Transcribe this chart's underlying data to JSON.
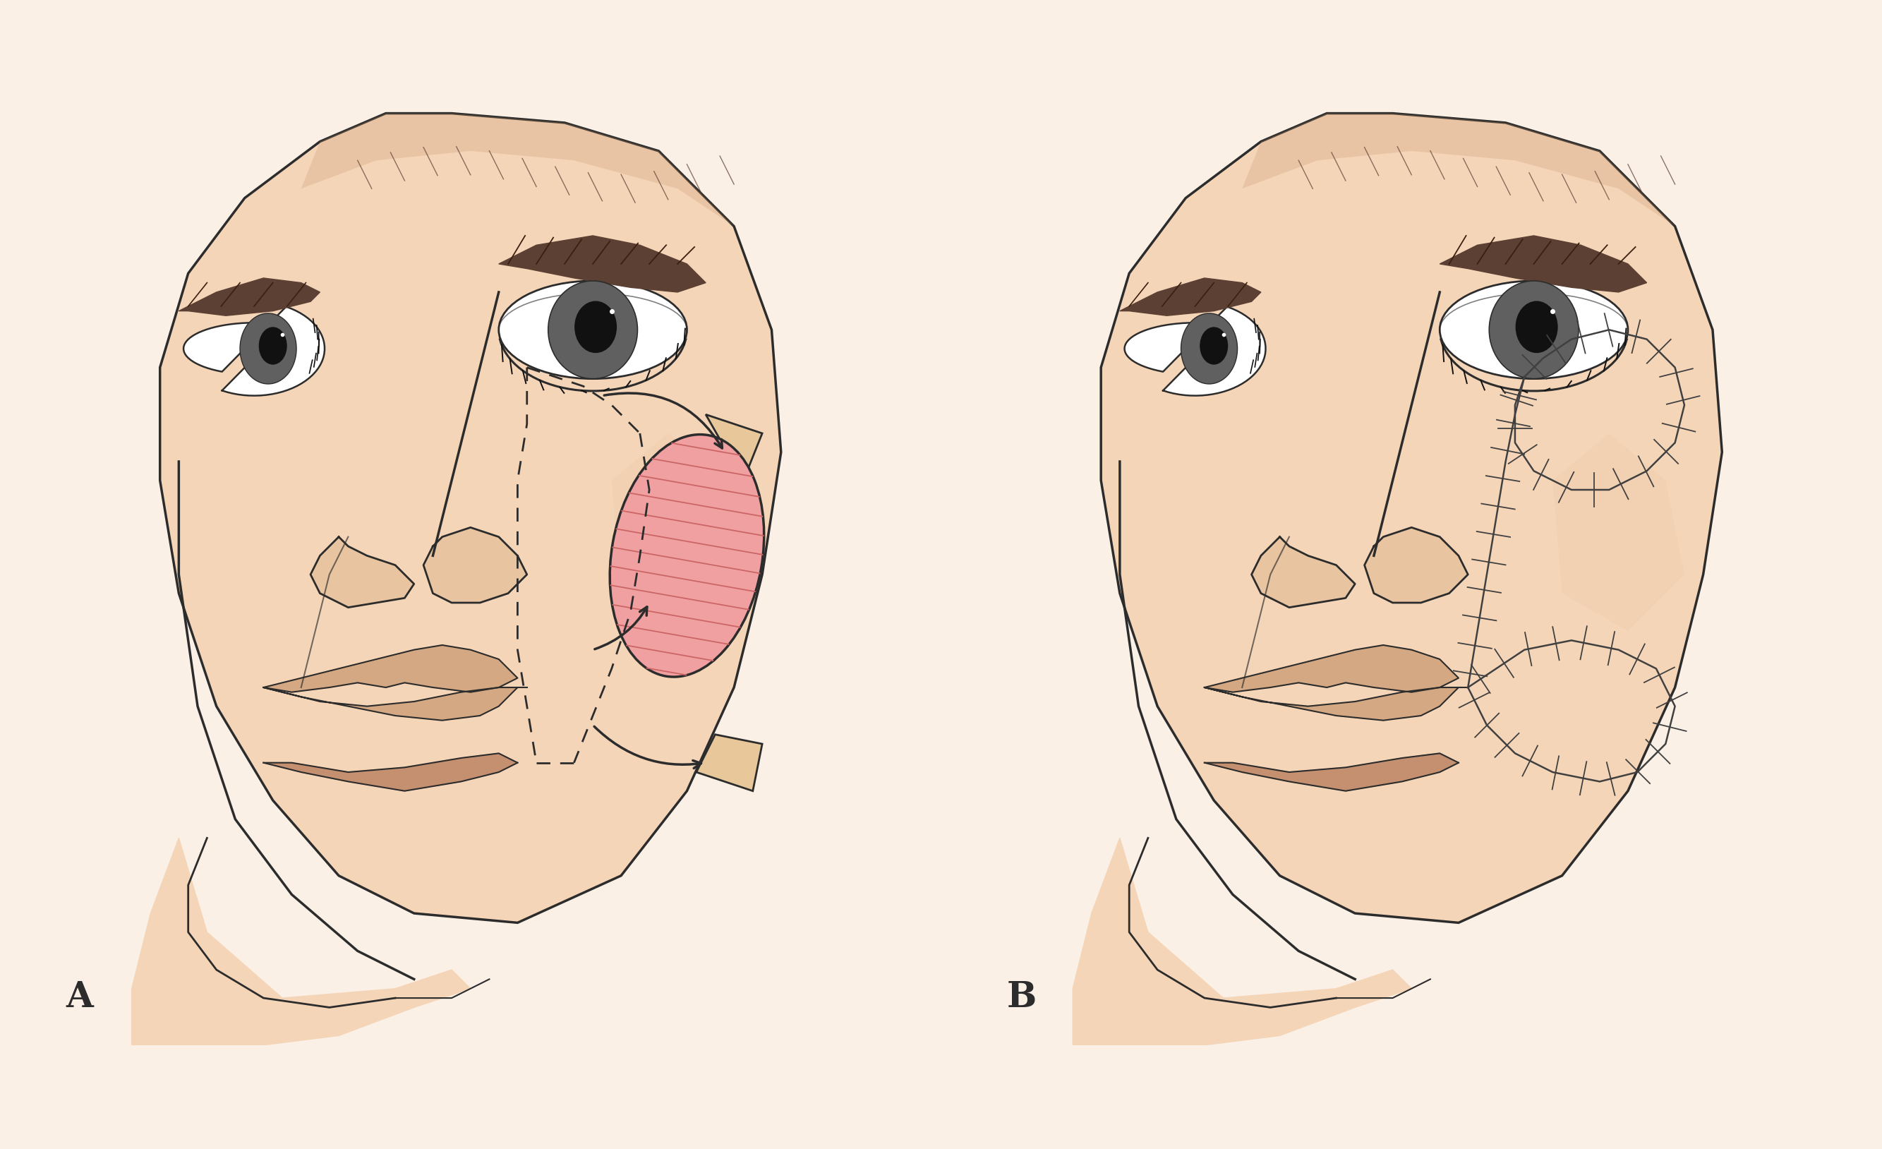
{
  "bg_color": "#FAF0E6",
  "skin_color": "#F5D5B8",
  "skin_shadow": "#E8C4A0",
  "outline_color": "#2C2C2C",
  "lip_color": "#D4A882",
  "lip_shadow": "#C49070",
  "flap_color": "#F0A0A0",
  "flap_hatch": "#CC6666",
  "triangle_color": "#E8C89A",
  "suture_color": "#404040",
  "label_A": "A",
  "label_B": "B",
  "label_fontsize": 36
}
